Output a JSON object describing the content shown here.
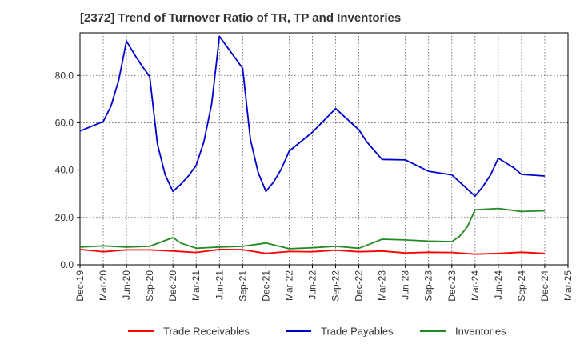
{
  "chart_data": {
    "type": "line",
    "title": "[2372]  Trend of Turnover Ratio of TR, TP and Inventories",
    "xlabel": "",
    "ylabel": "",
    "ylim": [
      0,
      98
    ],
    "y_ticks": [
      0,
      20,
      40,
      60,
      80
    ],
    "y_tick_labels": [
      "0.0",
      "20.0",
      "40.0",
      "60.0",
      "80.0"
    ],
    "x_ticks": [
      "Dec-19",
      "Mar-20",
      "Jun-20",
      "Sep-20",
      "Dec-20",
      "Mar-21",
      "Jun-21",
      "Sep-21",
      "Dec-21",
      "Mar-22",
      "Jun-22",
      "Sep-22",
      "Dec-22",
      "Mar-23",
      "Jun-23",
      "Sep-23",
      "Dec-23",
      "Mar-24",
      "Jun-24",
      "Sep-24",
      "Dec-24",
      "Mar-25"
    ],
    "x_unit": "month index from Dec-19",
    "grid": true,
    "legend_position": "bottom",
    "series": [
      {
        "name": "Trade Receivables",
        "color": "#ff0000",
        "points": [
          [
            0,
            6.5
          ],
          [
            3,
            5.5
          ],
          [
            6,
            6.3
          ],
          [
            9,
            6.3
          ],
          [
            12,
            5.8
          ],
          [
            15,
            5.2
          ],
          [
            18,
            6.5
          ],
          [
            21,
            6.4
          ],
          [
            24,
            4.8
          ],
          [
            27,
            5.6
          ],
          [
            30,
            5.5
          ],
          [
            33,
            6.2
          ],
          [
            36,
            5.5
          ],
          [
            39,
            5.8
          ],
          [
            42,
            5.0
          ],
          [
            45,
            5.3
          ],
          [
            48,
            5.2
          ],
          [
            51,
            4.5
          ],
          [
            54,
            4.8
          ],
          [
            57,
            5.3
          ],
          [
            60,
            4.8
          ]
        ]
      },
      {
        "name": "Trade Payables",
        "color": "#0000cc",
        "points": [
          [
            0,
            56.5
          ],
          [
            3,
            60.5
          ],
          [
            4,
            67
          ],
          [
            5,
            78
          ],
          [
            6,
            94.5
          ],
          [
            7,
            89
          ],
          [
            8,
            84
          ],
          [
            9,
            79.5
          ],
          [
            10,
            51
          ],
          [
            11,
            38
          ],
          [
            12,
            31
          ],
          [
            13,
            34
          ],
          [
            14,
            37.5
          ],
          [
            15,
            42
          ],
          [
            16,
            52
          ],
          [
            17,
            68
          ],
          [
            18,
            96.5
          ],
          [
            19,
            92
          ],
          [
            20,
            87.5
          ],
          [
            21,
            83
          ],
          [
            22,
            53
          ],
          [
            23,
            39
          ],
          [
            24,
            31
          ],
          [
            25,
            35
          ],
          [
            26,
            40.5
          ],
          [
            27,
            48
          ],
          [
            30,
            56
          ],
          [
            33,
            66
          ],
          [
            36,
            57
          ],
          [
            37,
            52
          ],
          [
            39,
            44.5
          ],
          [
            42,
            44.3
          ],
          [
            45,
            39.5
          ],
          [
            48,
            38
          ],
          [
            51,
            29
          ],
          [
            52,
            33
          ],
          [
            53,
            38
          ],
          [
            54,
            45
          ],
          [
            56,
            41
          ],
          [
            57,
            38.2
          ],
          [
            60,
            37.5
          ]
        ]
      },
      {
        "name": "Inventories",
        "color": "#228b22",
        "points": [
          [
            0,
            7.5
          ],
          [
            3,
            8.0
          ],
          [
            6,
            7.5
          ],
          [
            9,
            7.8
          ],
          [
            12,
            11.5
          ],
          [
            13,
            9.2
          ],
          [
            15,
            7.0
          ],
          [
            18,
            7.5
          ],
          [
            21,
            7.8
          ],
          [
            24,
            9.2
          ],
          [
            27,
            6.8
          ],
          [
            30,
            7.2
          ],
          [
            33,
            7.8
          ],
          [
            36,
            7.0
          ],
          [
            37,
            8.2
          ],
          [
            39,
            10.8
          ],
          [
            42,
            10.5
          ],
          [
            45,
            10.0
          ],
          [
            48,
            9.8
          ],
          [
            49,
            12.0
          ],
          [
            50,
            16.0
          ],
          [
            51,
            23.2
          ],
          [
            54,
            23.8
          ],
          [
            57,
            22.5
          ],
          [
            60,
            22.8
          ]
        ]
      }
    ]
  }
}
